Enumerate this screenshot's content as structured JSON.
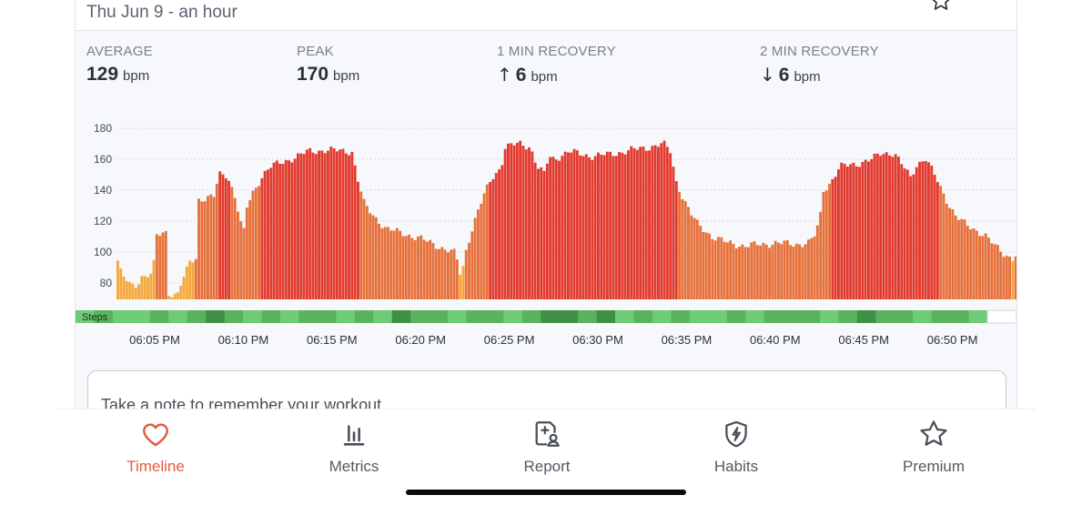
{
  "header": {
    "subtitle": "Thu Jun 9 - an hour",
    "favorite_icon": "star-outline-icon"
  },
  "stats": [
    {
      "label": "AVERAGE",
      "arrow": "",
      "value": "129",
      "unit": "bpm"
    },
    {
      "label": "PEAK",
      "arrow": "",
      "value": "170",
      "unit": "bpm"
    },
    {
      "label": "1 MIN RECOVERY",
      "arrow": "↑",
      "value": "6",
      "unit": "bpm"
    },
    {
      "label": "2 MIN RECOVERY",
      "arrow": "↓",
      "value": "6",
      "unit": "bpm"
    }
  ],
  "chart_data": {
    "type": "bar",
    "y_ticks": [
      "180",
      "160",
      "140",
      "120",
      "100",
      "80"
    ],
    "ylim": [
      70,
      181
    ],
    "x_ticks": [
      "06:05 PM",
      "06:10 PM",
      "06:15 PM",
      "06:20 PM",
      "06:25 PM",
      "06:30 PM",
      "06:35 PM",
      "06:40 PM",
      "06:45 PM",
      "06:50 PM"
    ],
    "grid": "horizontal dotted",
    "zone_colors": {
      "light": "#f4a83a",
      "moderate": "#e7713b",
      "hard": "#e23a2e"
    },
    "steps_label": "Steps",
    "steps_colors": [
      "#6fcc76",
      "#59b35e",
      "#3f8f45"
    ]
  },
  "note": {
    "placeholder": "Take a note to remember your workout..."
  },
  "tabbar": {
    "tabs": [
      {
        "label": "Timeline",
        "icon": "heart-icon",
        "active": true
      },
      {
        "label": "Metrics",
        "icon": "bar-chart-icon",
        "active": false
      },
      {
        "label": "Report",
        "icon": "report-icon",
        "active": false
      },
      {
        "label": "Habits",
        "icon": "shield-bolt-icon",
        "active": false
      },
      {
        "label": "Premium",
        "icon": "star-icon",
        "active": false
      }
    ]
  }
}
